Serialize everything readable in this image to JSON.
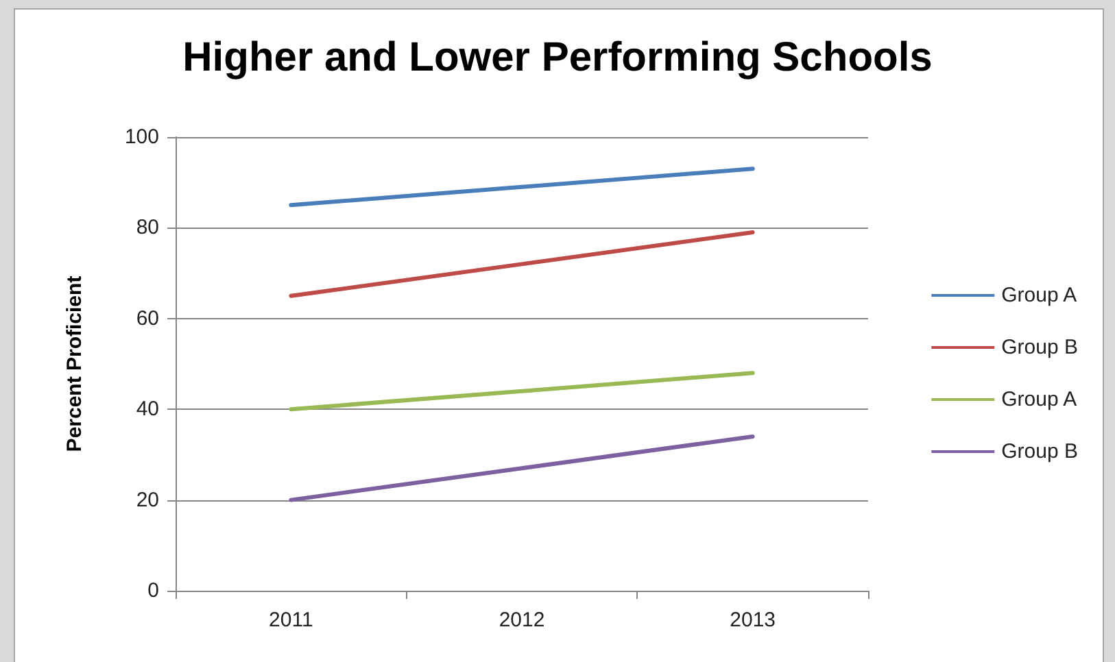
{
  "chart_data": {
    "type": "line",
    "title": "Higher and Lower Performing Schools",
    "ylabel": "Percent Proficient",
    "categories": [
      "2011",
      "2012",
      "2013"
    ],
    "series": [
      {
        "name": "Group A",
        "color": "#4a7ebb",
        "values": [
          85,
          89,
          93
        ]
      },
      {
        "name": "Group B",
        "color": "#be4b48",
        "values": [
          65,
          72,
          79
        ]
      },
      {
        "name": "Group A",
        "color": "#98b954",
        "values": [
          40,
          44,
          48
        ]
      },
      {
        "name": "Group B",
        "color": "#7d60a0",
        "values": [
          20,
          27,
          34
        ]
      }
    ],
    "ylim": [
      0,
      100
    ],
    "yticks": [
      0,
      20,
      40,
      60,
      80,
      100
    ],
    "grid": "y",
    "legend": "right",
    "marker": "none",
    "line_style": "solid"
  }
}
